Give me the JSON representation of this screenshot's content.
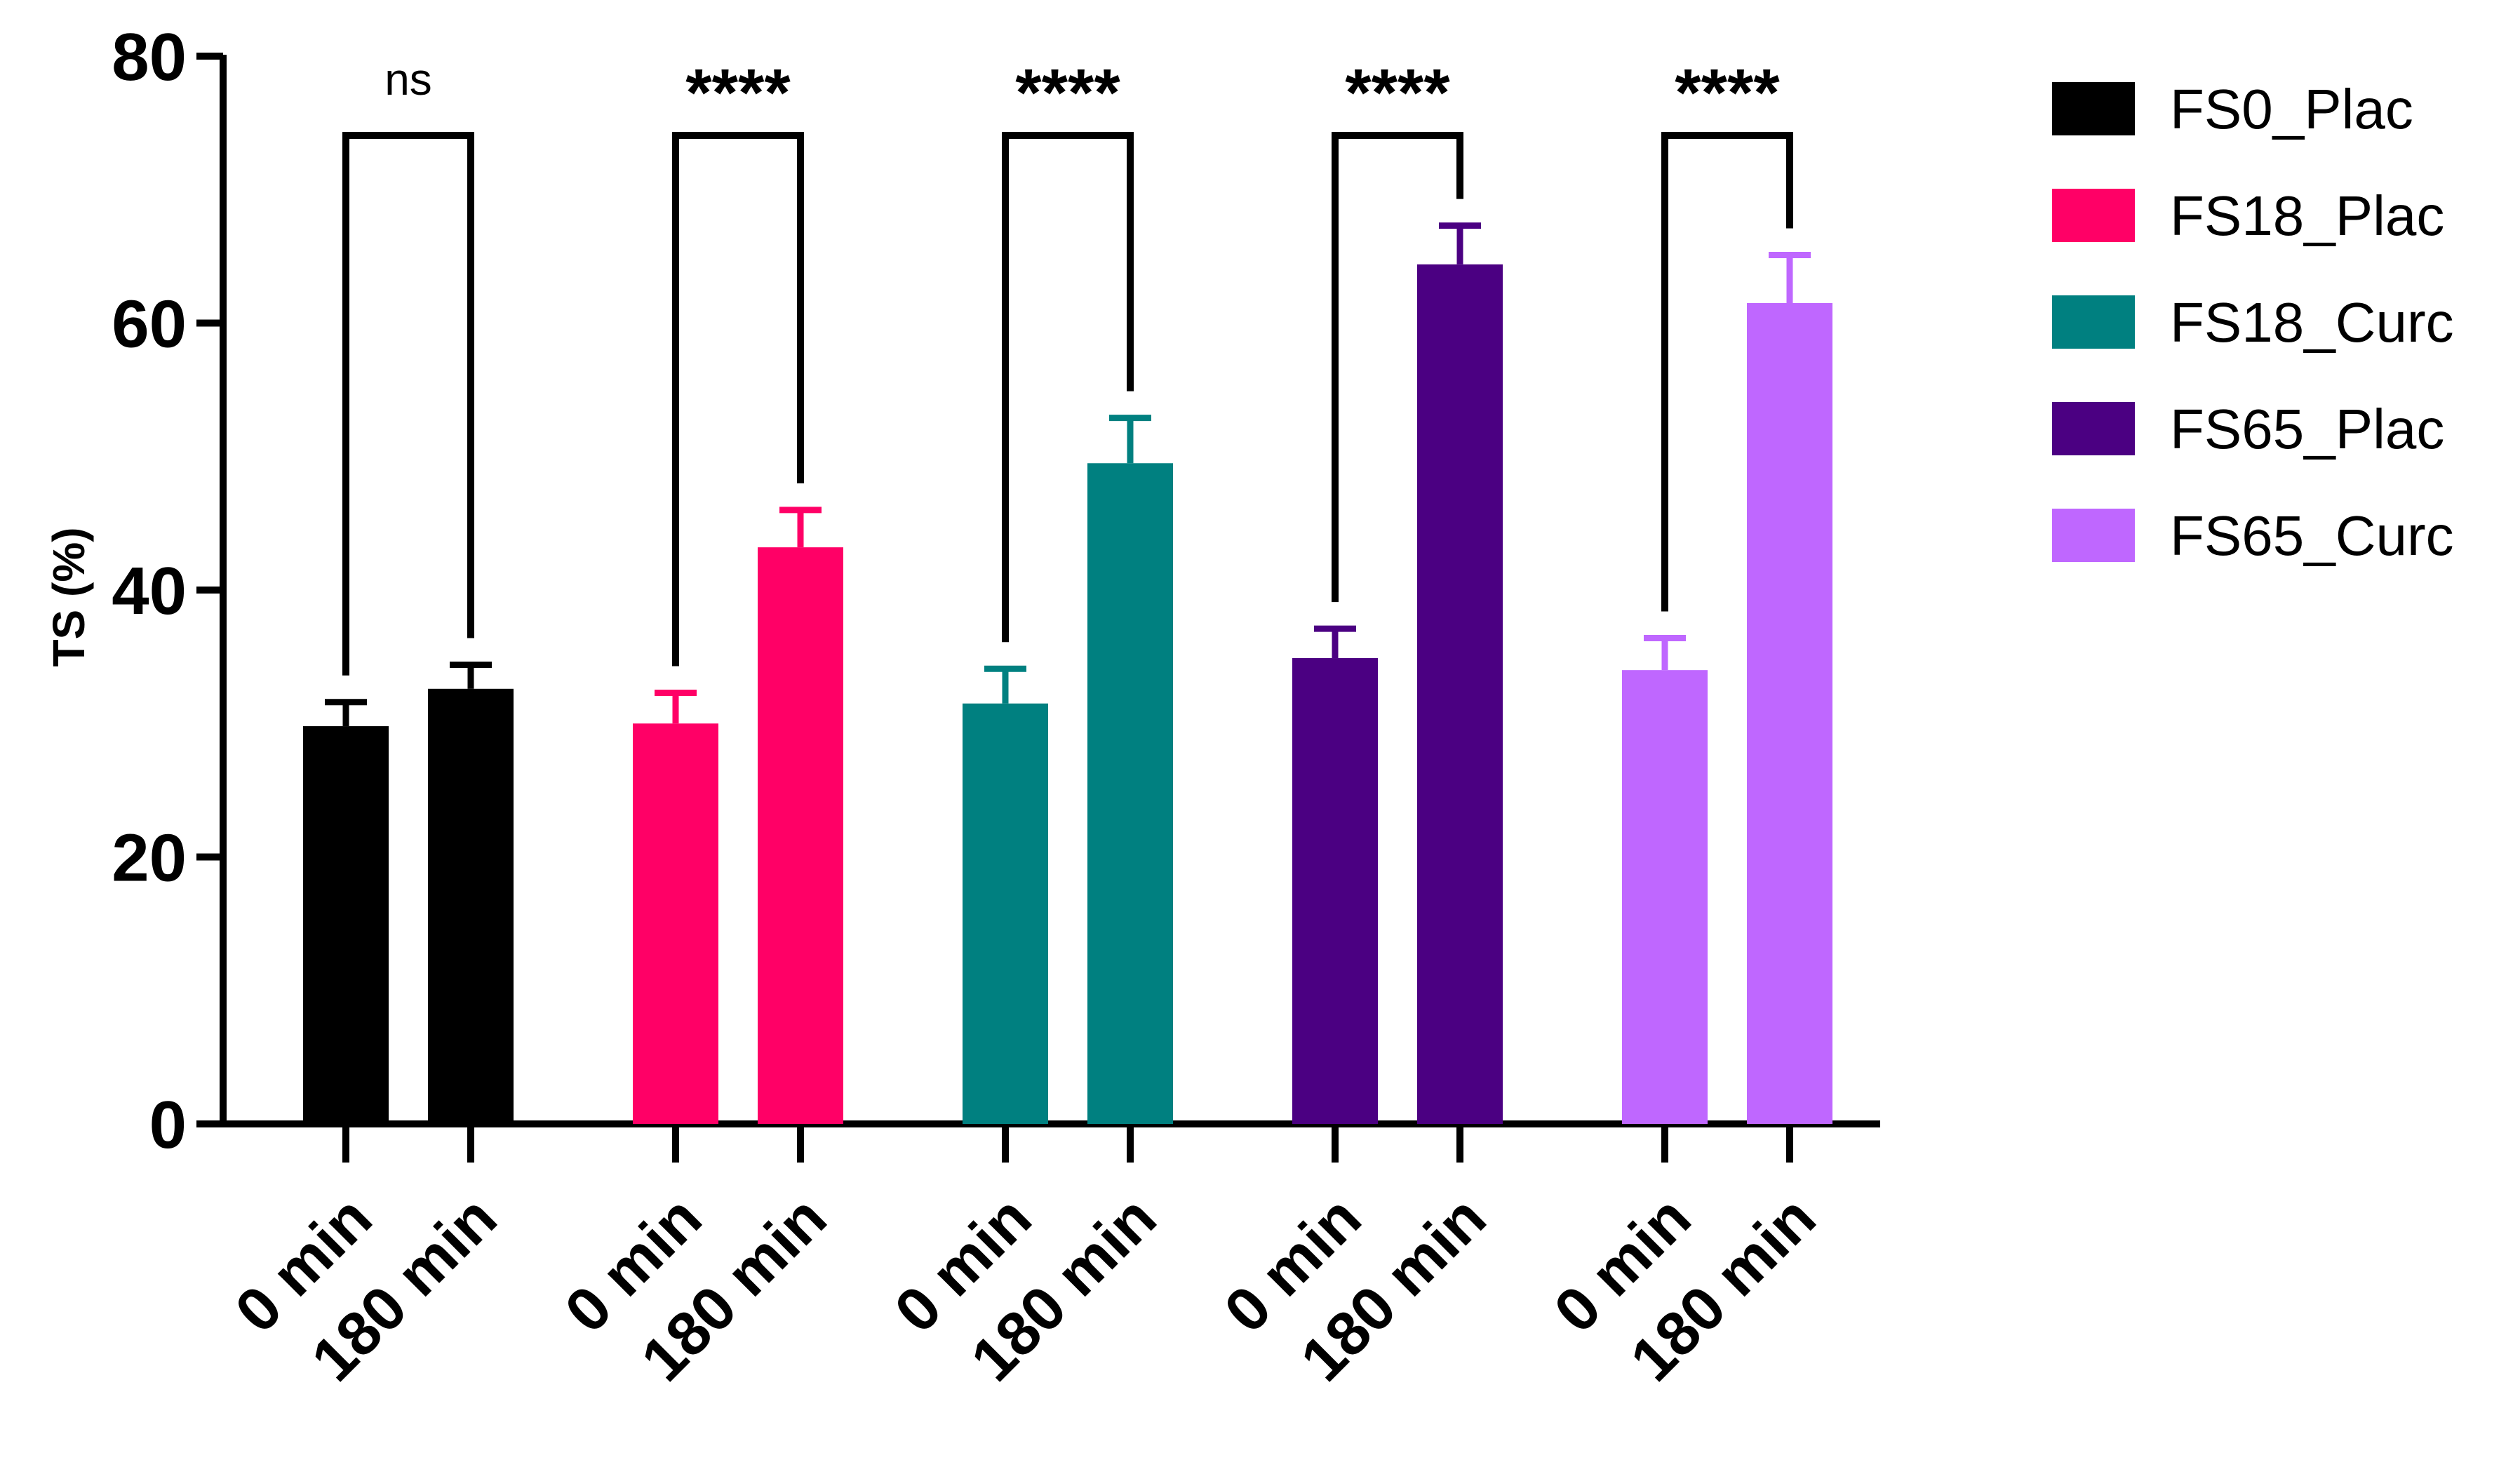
{
  "chart_data": {
    "type": "bar",
    "title": "",
    "xlabel": "",
    "ylabel": "TS (%)",
    "ylim": [
      0,
      80
    ],
    "yticks": [
      0,
      20,
      40,
      60,
      80
    ],
    "grid": false,
    "legend_position": "right",
    "categories": [
      "0 min",
      "180 min"
    ],
    "series": [
      {
        "name": "FS0_Plac",
        "color": "#000000",
        "values": [
          29.8,
          32.6
        ],
        "errors": [
          1.8,
          1.8
        ],
        "significance": "ns"
      },
      {
        "name": "FS18_Plac",
        "color": "#ff0066",
        "values": [
          30.0,
          43.2
        ],
        "errors": [
          2.3,
          2.8
        ],
        "significance": "****"
      },
      {
        "name": "FS18_Curc",
        "color": "#008080",
        "values": [
          31.5,
          49.5
        ],
        "errors": [
          2.6,
          3.4
        ],
        "significance": "****"
      },
      {
        "name": "FS65_Plac",
        "color": "#4b0082",
        "values": [
          34.9,
          64.4
        ],
        "errors": [
          2.2,
          2.9
        ],
        "significance": "****"
      },
      {
        "name": "FS65_Curc",
        "color": "#bf67ff",
        "values": [
          34.0,
          61.5
        ],
        "errors": [
          2.4,
          3.6
        ],
        "significance": "****"
      }
    ]
  }
}
